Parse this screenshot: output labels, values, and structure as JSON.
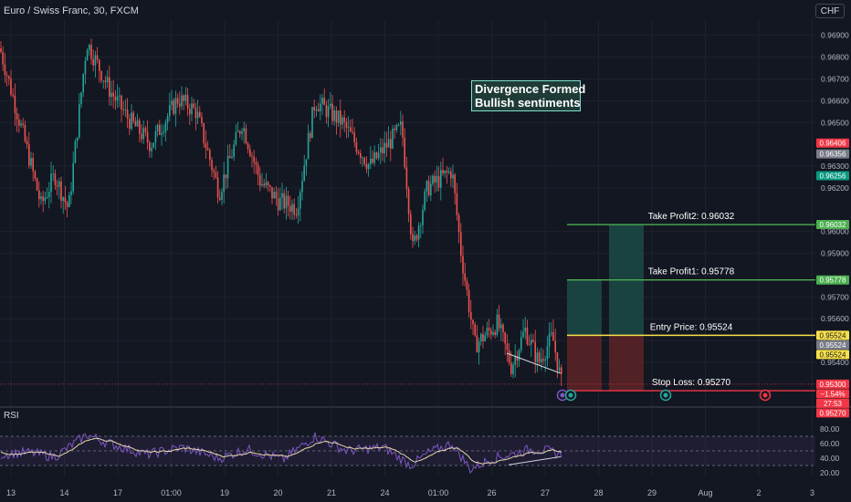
{
  "header": {
    "title": "Euro / Swiss Franc, 30, FXCM",
    "currency": "CHF"
  },
  "annotation": {
    "line1": "Divergence Formed",
    "line2": "Bullish sentiments"
  },
  "rsi_label": "RSI",
  "colors": {
    "up": "#26a69a",
    "down": "#ef5350",
    "tp": "#4caf50",
    "entry": "#f7e04a",
    "sl": "#f23645",
    "rsi": "#7e57c2",
    "rsi_ma": "#e8d9a8",
    "bg": "#131722"
  },
  "chart_data": [
    {
      "type": "candlestick",
      "title": "Euro / Swiss Franc, 30, FXCM",
      "ylim": [
        0.9522,
        0.9697
      ],
      "price_ticks": [
        "0.96900",
        "0.96800",
        "0.96700",
        "0.96600",
        "0.96500",
        "0.96300",
        "0.96200",
        "0.96000",
        "0.95900",
        "0.95700",
        "0.95600",
        "0.95500",
        "0.95400"
      ],
      "x_ticks": [
        "13",
        "14",
        "17",
        "01:00",
        "19",
        "20",
        "21",
        "24",
        "01:00",
        "26",
        "27",
        "28",
        "29",
        "Aug",
        "2",
        "3"
      ],
      "key_points": {
        "start": 0.9684,
        "rally_high": 0.9687,
        "first_low": 0.9611,
        "second_high": 0.966,
        "drop_low": 0.959,
        "bounce_high": 0.9628,
        "last": 0.953
      },
      "levels": [
        {
          "label": "Take Profit2: 0.96032",
          "price": 0.96032,
          "tag": "0.96032",
          "color": "#4caf50"
        },
        {
          "label": "Take Profit1: 0.95778",
          "price": 0.95778,
          "tag": "0.95778",
          "color": "#4caf50"
        },
        {
          "label": "Entry Price: 0.95524",
          "price": 0.95524,
          "tag": "0.95524",
          "color": "#f7e04a"
        },
        {
          "label": "Stop Loss: 0.95270",
          "price": 0.9527,
          "tag": "0.95270",
          "color": "#f23645"
        }
      ],
      "price_tags": [
        {
          "text": "0.96406",
          "price": 0.96406,
          "color": "#f23645"
        },
        {
          "text": "0.96356",
          "price": 0.96356,
          "color": "#787b86"
        },
        {
          "text": "0.96256",
          "price": 0.96256,
          "color": "#089981"
        },
        {
          "text": "0.96032",
          "price": 0.96032,
          "color": "#4caf50"
        },
        {
          "text": "0.95778",
          "price": 0.95778,
          "color": "#4caf50"
        },
        {
          "text": "0.95524",
          "price": 0.95524,
          "color": "#f7e04a"
        },
        {
          "text": "0.95524",
          "price": 0.95524,
          "color": "#787b86"
        },
        {
          "text": "0.95524",
          "price": 0.95524,
          "color": "#f7e04a"
        },
        {
          "text": "0.95300",
          "price": 0.953,
          "color": "#f23645"
        },
        {
          "text": "−1.54%",
          "price": 0.953,
          "color": "#f23645"
        },
        {
          "text": "27:53",
          "price": 0.953,
          "color": "#f23645"
        },
        {
          "text": "0.95270",
          "price": 0.9527,
          "color": "#f23645"
        }
      ]
    },
    {
      "type": "line",
      "title": "RSI",
      "ylim": [
        15,
        90
      ],
      "y_ticks": [
        "80.00",
        "60.00",
        "40.00",
        "20.00"
      ],
      "bands": [
        70,
        50,
        30
      ]
    }
  ]
}
